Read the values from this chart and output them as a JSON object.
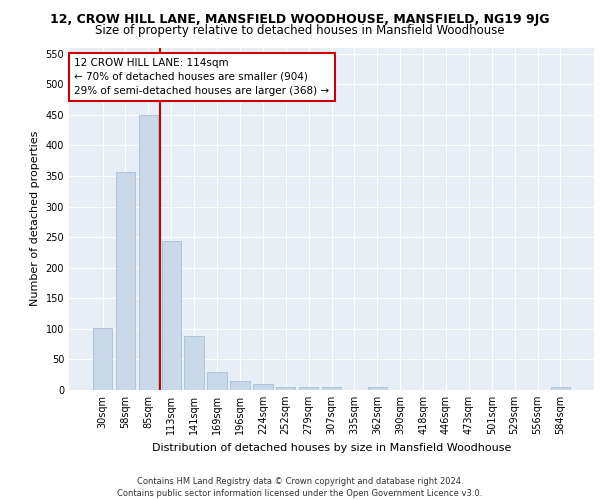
{
  "title1": "12, CROW HILL LANE, MANSFIELD WOODHOUSE, MANSFIELD, NG19 9JG",
  "title2": "Size of property relative to detached houses in Mansfield Woodhouse",
  "xlabel": "Distribution of detached houses by size in Mansfield Woodhouse",
  "ylabel": "Number of detached properties",
  "categories": [
    "30sqm",
    "58sqm",
    "85sqm",
    "113sqm",
    "141sqm",
    "169sqm",
    "196sqm",
    "224sqm",
    "252sqm",
    "279sqm",
    "307sqm",
    "335sqm",
    "362sqm",
    "390sqm",
    "418sqm",
    "446sqm",
    "473sqm",
    "501sqm",
    "529sqm",
    "556sqm",
    "584sqm"
  ],
  "values": [
    102,
    356,
    449,
    243,
    88,
    30,
    14,
    9,
    5,
    5,
    5,
    0,
    5,
    0,
    0,
    0,
    0,
    0,
    0,
    0,
    5
  ],
  "bar_color": "#c8d8e8",
  "bar_edge_color": "#a0b8d0",
  "vline_color": "#cc0000",
  "vline_pos": 2.5,
  "annotation_text": "12 CROW HILL LANE: 114sqm\n← 70% of detached houses are smaller (904)\n29% of semi-detached houses are larger (368) →",
  "annotation_box_color": "#ffffff",
  "annotation_box_edge": "#cc0000",
  "ylim": [
    0,
    560
  ],
  "yticks": [
    0,
    50,
    100,
    150,
    200,
    250,
    300,
    350,
    400,
    450,
    500,
    550
  ],
  "plot_bg_color": "#e8eef5",
  "grid_color": "#ffffff",
  "footnote": "Contains HM Land Registry data © Crown copyright and database right 2024.\nContains public sector information licensed under the Open Government Licence v3.0.",
  "title1_fontsize": 9,
  "title2_fontsize": 8.5,
  "xlabel_fontsize": 8,
  "ylabel_fontsize": 8,
  "tick_fontsize": 7,
  "annot_fontsize": 7.5,
  "footnote_fontsize": 6
}
